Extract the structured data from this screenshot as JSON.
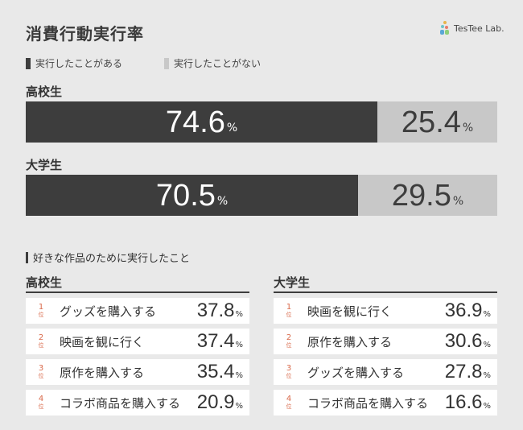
{
  "title": "消費行動実行率",
  "brand": "TesTee Lab.",
  "legend": [
    {
      "label": "実行したことがある",
      "color": "#3d3d3d"
    },
    {
      "label": "実行したことがない",
      "color": "#c8c8c8"
    }
  ],
  "chart_data": [
    {
      "type": "bar",
      "orientation": "horizontal-stacked-100",
      "unit": "%",
      "categories": [
        "高校生",
        "大学生"
      ],
      "series": [
        {
          "name": "実行したことがある",
          "values": [
            74.6,
            70.5
          ],
          "color": "#3d3d3d"
        },
        {
          "name": "実行したことがない",
          "values": [
            25.4,
            29.5
          ],
          "color": "#c8c8c8"
        }
      ]
    },
    {
      "type": "table",
      "title": "好きな作品のために実行したこと",
      "groups": [
        {
          "name": "高校生",
          "rows": [
            {
              "rank": "1",
              "label": "グッズを購入する",
              "value": 37.8
            },
            {
              "rank": "2",
              "label": "映画を観に行く",
              "value": 37.4
            },
            {
              "rank": "3",
              "label": "原作を購入する",
              "value": 35.4
            },
            {
              "rank": "4",
              "label": "コラボ商品を購入する",
              "value": 20.9
            }
          ]
        },
        {
          "name": "大学生",
          "rows": [
            {
              "rank": "1",
              "label": "映画を観に行く",
              "value": 36.9
            },
            {
              "rank": "2",
              "label": "原作を購入する",
              "value": 30.6
            },
            {
              "rank": "3",
              "label": "グッズを購入する",
              "value": 27.8
            },
            {
              "rank": "4",
              "label": "コラボ商品を購入する",
              "value": 16.6
            }
          ]
        }
      ]
    }
  ],
  "pct_sign": "%",
  "rank_unit": "位"
}
